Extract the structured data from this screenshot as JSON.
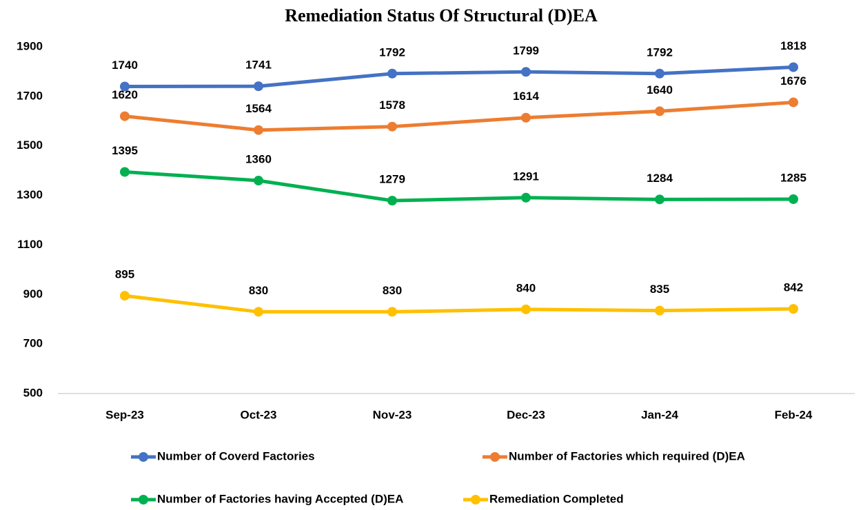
{
  "chart_data": {
    "type": "line",
    "title": "Remediation Status Of Structural (D)EA",
    "categories": [
      "Sep-23",
      "Oct-23",
      "Nov-23",
      "Dec-23",
      "Jan-24",
      "Feb-24"
    ],
    "series": [
      {
        "name": "Number of Coverd Factories",
        "color": "#4472c4",
        "values": [
          1740,
          1741,
          1792,
          1799,
          1792,
          1818
        ]
      },
      {
        "name": "Number of Factories which required (D)EA",
        "color": "#ed7d31",
        "values": [
          1620,
          1564,
          1578,
          1614,
          1640,
          1676
        ]
      },
      {
        "name": "Number of Factories having Accepted (D)EA",
        "color": "#00b050",
        "values": [
          1395,
          1360,
          1279,
          1291,
          1284,
          1285
        ]
      },
      {
        "name": "Remediation Completed",
        "color": "#ffc000",
        "values": [
          895,
          830,
          830,
          840,
          835,
          842
        ]
      }
    ],
    "ylim": [
      500,
      1900
    ],
    "yticks": [
      500,
      700,
      900,
      1100,
      1300,
      1500,
      1700,
      1900
    ],
    "grid": false,
    "legend": "bottom"
  }
}
